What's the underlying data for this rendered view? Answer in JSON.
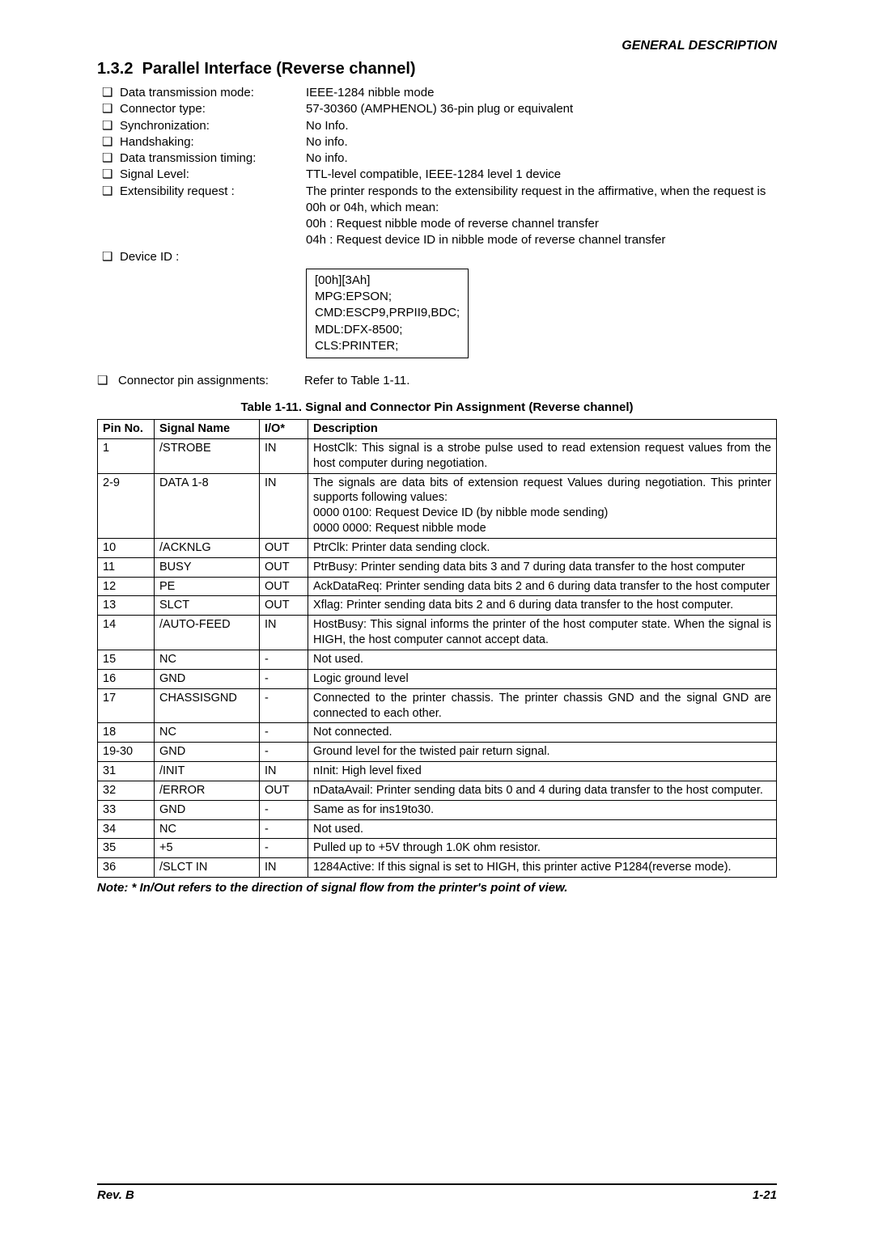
{
  "header": {
    "label": "GENERAL DESCRIPTION"
  },
  "section": {
    "number": "1.3.2",
    "title": "Parallel Interface (Reverse channel)"
  },
  "specs": [
    {
      "label": "Data transmission mode:",
      "value": "IEEE-1284 nibble mode"
    },
    {
      "label": "Connector type:",
      "value": "57-30360 (AMPHENOL) 36-pin plug or equivalent"
    },
    {
      "label": "Synchronization:",
      "value": "No Info."
    },
    {
      "label": "Handshaking:",
      "value": "No info."
    },
    {
      "label": "Data transmission timing:",
      "value": "No info."
    },
    {
      "label": "Signal Level:",
      "value": "TTL-level compatible, IEEE-1284 level 1 device"
    },
    {
      "label": "Extensibility request :",
      "value": "The printer responds to the extensibility request in the affirmative, when the request is 00h or 04h, which mean:\n00h : Request nibble mode of reverse channel transfer\n04h : Request device ID in nibble mode of reverse channel transfer"
    },
    {
      "label": "Device ID :",
      "value": ""
    }
  ],
  "bullet_char": "❑",
  "device_id_box": [
    "[00h][3Ah]",
    "MPG:EPSON;",
    "CMD:ESCP9,PRPII9,BDC;",
    "MDL:DFX-8500;",
    "CLS:PRINTER;"
  ],
  "connector_assign": {
    "label": "Connector pin assignments:",
    "value": "Refer to Table 1-11."
  },
  "table": {
    "caption": "Table 1-11. Signal and Connector Pin Assignment (Reverse channel)",
    "columns": [
      "Pin No.",
      "Signal Name",
      "I/O*",
      "Description"
    ],
    "rows": [
      [
        "1",
        "/STROBE",
        "IN",
        "HostClk: This signal is a strobe pulse used to read extension request values from the host computer during negotiation."
      ],
      [
        "2-9",
        "DATA 1-8",
        "IN",
        "The signals are data bits of extension request Values during negotiation. This printer supports following values:\n  0000 0100: Request Device ID (by nibble mode sending)\n  0000 0000: Request nibble mode"
      ],
      [
        "10",
        "/ACKNLG",
        "OUT",
        "PtrClk: Printer data sending clock."
      ],
      [
        "11",
        "BUSY",
        "OUT",
        "PtrBusy: Printer sending data bits 3 and 7 during data transfer to the host computer"
      ],
      [
        "12",
        "PE",
        "OUT",
        "AckDataReq: Printer sending data bits 2 and 6 during data transfer to the host computer"
      ],
      [
        "13",
        "SLCT",
        "OUT",
        "Xflag: Printer sending data bits 2 and 6 during data transfer to the host computer."
      ],
      [
        "14",
        "/AUTO-FEED",
        "IN",
        "HostBusy: This signal informs the printer of the host computer state. When the signal is HIGH, the host computer  cannot accept data."
      ],
      [
        "15",
        "NC",
        "-",
        "Not used."
      ],
      [
        "16",
        "GND",
        "-",
        "Logic ground level"
      ],
      [
        "17",
        "CHASSISGND",
        "-",
        "Connected to the printer chassis. The printer chassis GND and the signal GND are connected to each other."
      ],
      [
        "18",
        "NC",
        "-",
        "Not connected."
      ],
      [
        "19-30",
        "GND",
        "-",
        "Ground level for the twisted pair return signal."
      ],
      [
        "31",
        "/INIT",
        "IN",
        "nInit: High level fixed"
      ],
      [
        "32",
        "/ERROR",
        "OUT",
        "nDataAvail: Printer sending data bits 0 and 4 during data transfer to the host computer."
      ],
      [
        "33",
        "GND",
        "-",
        "Same as for ins19to30."
      ],
      [
        "34",
        "NC",
        "-",
        "Not used."
      ],
      [
        "35",
        "+5",
        "-",
        "Pulled up to +5V through 1.0K ohm resistor."
      ],
      [
        "36",
        "/SLCT IN",
        "IN",
        "1284Active: If this signal is set to HIGH, this printer active P1284(reverse mode)."
      ]
    ]
  },
  "note": "Note: * In/Out refers to the direction of signal flow from the printer's point of view.",
  "footer": {
    "left": "Rev. B",
    "right": "1-21"
  }
}
